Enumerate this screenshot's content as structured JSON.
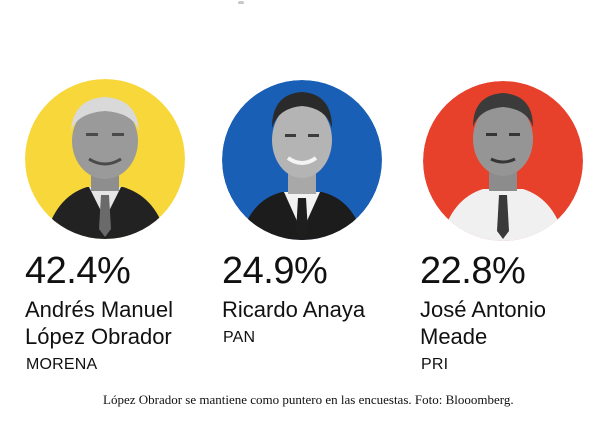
{
  "colors": {
    "morena": "#f8d73a",
    "pan": "#1a5fb6",
    "pri": "#e8412b"
  },
  "candidates": [
    {
      "percent": "42.4%",
      "name_line1": "Andrés Manuel",
      "name_line2": "López Obrador",
      "party": "MORENA"
    },
    {
      "percent": "24.9%",
      "name_line1": "Ricardo Anaya",
      "name_line2": "",
      "party": "PAN"
    },
    {
      "percent": "22.8%",
      "name_line1": "José Antonio",
      "name_line2": "Meade",
      "party": "PRI"
    }
  ],
  "caption": "López Obrador se mantiene como puntero en las encuestas. Foto: Blooomberg."
}
